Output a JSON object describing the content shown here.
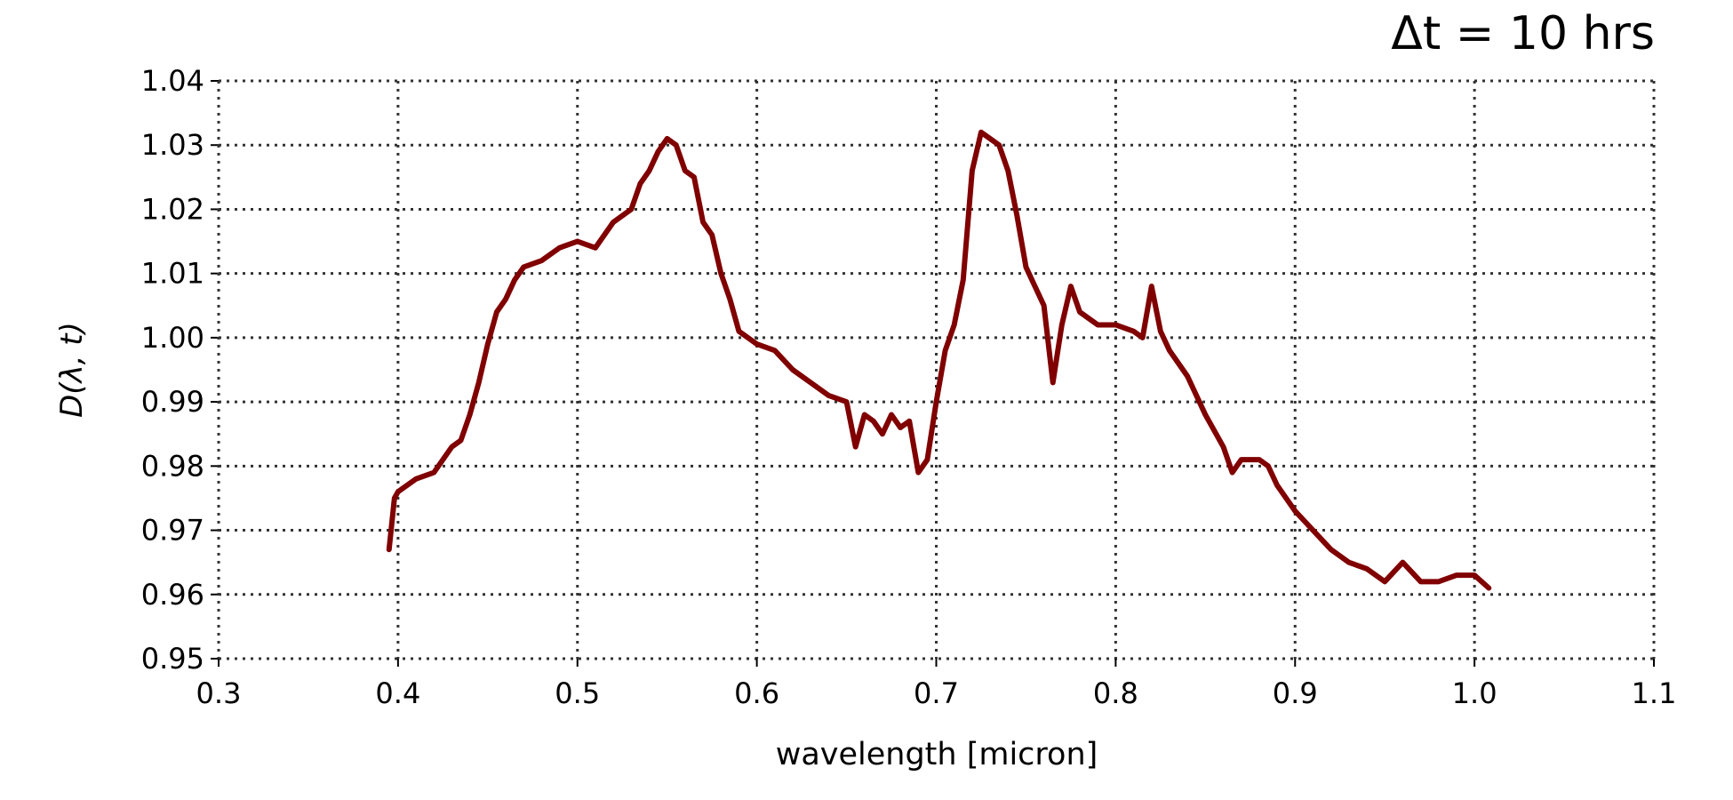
{
  "chart_data": {
    "type": "line",
    "title": "Δt = 10 hrs",
    "xlabel": "wavelength [micron]",
    "ylabel": "D(λ, t)",
    "x": [
      0.395,
      0.398,
      0.4,
      0.41,
      0.42,
      0.43,
      0.435,
      0.44,
      0.445,
      0.45,
      0.455,
      0.46,
      0.465,
      0.47,
      0.48,
      0.49,
      0.5,
      0.51,
      0.52,
      0.53,
      0.535,
      0.54,
      0.545,
      0.55,
      0.555,
      0.56,
      0.565,
      0.57,
      0.575,
      0.58,
      0.585,
      0.59,
      0.6,
      0.61,
      0.62,
      0.63,
      0.64,
      0.65,
      0.655,
      0.66,
      0.665,
      0.67,
      0.675,
      0.68,
      0.685,
      0.69,
      0.695,
      0.7,
      0.705,
      0.71,
      0.715,
      0.72,
      0.725,
      0.73,
      0.735,
      0.74,
      0.745,
      0.75,
      0.755,
      0.76,
      0.765,
      0.77,
      0.775,
      0.78,
      0.79,
      0.8,
      0.81,
      0.815,
      0.82,
      0.825,
      0.83,
      0.835,
      0.84,
      0.85,
      0.86,
      0.865,
      0.87,
      0.88,
      0.885,
      0.89,
      0.895,
      0.9,
      0.91,
      0.92,
      0.93,
      0.94,
      0.95,
      0.96,
      0.97,
      0.98,
      0.99,
      1.0,
      1.008
    ],
    "series": [
      {
        "name": "D",
        "color": "#800000",
        "values": [
          0.967,
          0.975,
          0.976,
          0.978,
          0.979,
          0.983,
          0.984,
          0.988,
          0.993,
          0.999,
          1.004,
          1.006,
          1.009,
          1.011,
          1.012,
          1.014,
          1.015,
          1.014,
          1.018,
          1.02,
          1.024,
          1.026,
          1.029,
          1.031,
          1.03,
          1.026,
          1.025,
          1.018,
          1.016,
          1.01,
          1.006,
          1.001,
          0.999,
          0.998,
          0.995,
          0.993,
          0.991,
          0.99,
          0.983,
          0.988,
          0.987,
          0.985,
          0.988,
          0.986,
          0.987,
          0.979,
          0.981,
          0.99,
          0.998,
          1.002,
          1.009,
          1.026,
          1.032,
          1.031,
          1.03,
          1.026,
          1.019,
          1.011,
          1.008,
          1.005,
          0.993,
          1.002,
          1.008,
          1.004,
          1.002,
          1.002,
          1.001,
          1.0,
          1.008,
          1.001,
          0.998,
          0.996,
          0.994,
          0.988,
          0.983,
          0.979,
          0.981,
          0.981,
          0.98,
          0.977,
          0.975,
          0.973,
          0.97,
          0.967,
          0.965,
          0.964,
          0.962,
          0.965,
          0.962,
          0.962,
          0.963,
          0.963,
          0.961
        ]
      }
    ],
    "xlim": [
      0.3,
      1.1
    ],
    "xticks": [
      0.3,
      0.4,
      0.5,
      0.6,
      0.7,
      0.8,
      0.9,
      {
        "value": 1,
        "label": "1.0"
      },
      1.1
    ],
    "ylim": [
      0.95,
      1.04
    ],
    "yticks": [
      0.95,
      0.96,
      0.97,
      0.98,
      0.99,
      {
        "value": 1,
        "label": "1.00"
      },
      1.01,
      1.02,
      1.03,
      1.04
    ],
    "grid": true
  }
}
